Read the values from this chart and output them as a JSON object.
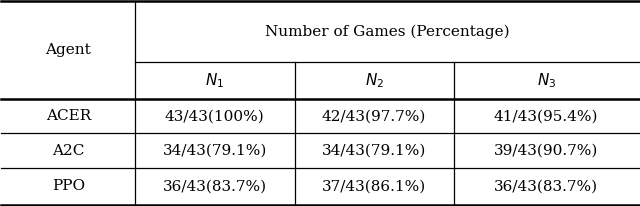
{
  "title": "Number of Games (Percentage)",
  "rows": [
    [
      "ACER",
      "43/43(100%)",
      "42/43(97.7%)",
      "41/43(95.4%)"
    ],
    [
      "A2C",
      "34/43(79.1%)",
      "34/43(79.1%)",
      "39/43(90.7%)"
    ],
    [
      "PPO",
      "36/43(83.7%)",
      "37/43(86.1%)",
      "36/43(83.7%)"
    ]
  ],
  "sub_labels": [
    "$N_1$",
    "$N_2$",
    "$N_3$"
  ],
  "bg_color": "#ffffff",
  "text_color": "#000000",
  "font_size": 11
}
